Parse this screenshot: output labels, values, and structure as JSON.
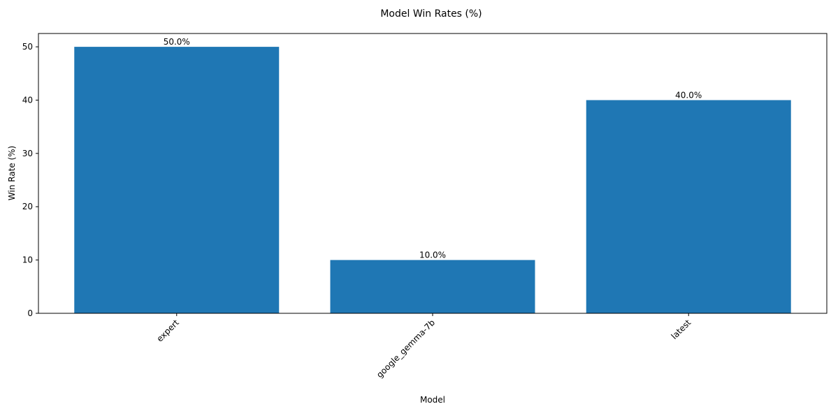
{
  "chart_data": {
    "type": "bar",
    "title": "Model Win Rates (%)",
    "xlabel": "Model",
    "ylabel": "Win Rate (%)",
    "categories": [
      "expert",
      "google_gemma-7b",
      "latest"
    ],
    "values": [
      50.0,
      10.0,
      40.0
    ],
    "data_labels": [
      "50.0%",
      "10.0%",
      "40.0%"
    ],
    "ylim": [
      0,
      52.5
    ],
    "yticks": [
      0,
      10,
      20,
      30,
      40,
      50
    ],
    "grid": false,
    "legend": "none",
    "bar_color": "#1f77b4"
  }
}
